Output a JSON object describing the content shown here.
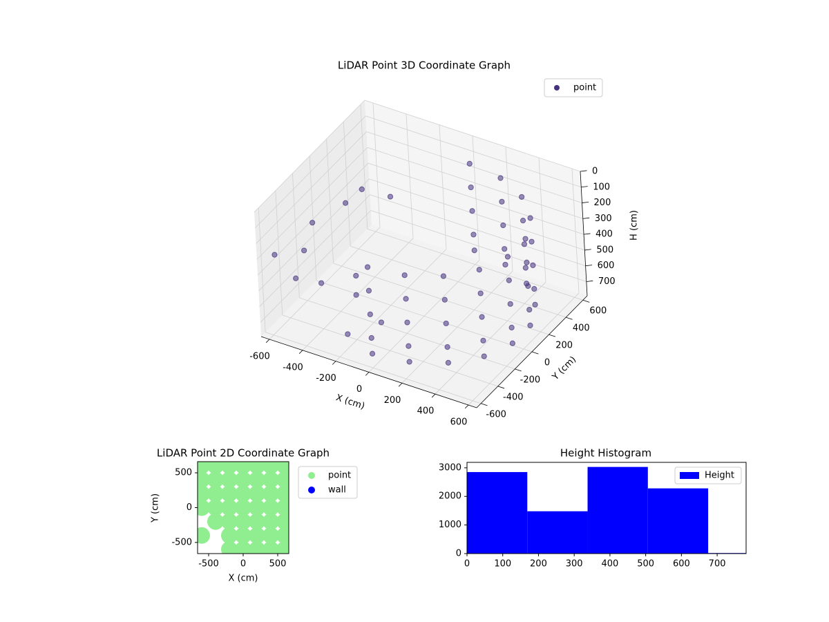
{
  "chart_data": [
    {
      "type": "scatter3d",
      "title": "LiDAR Point 3D Coordinate Graph",
      "xlabel": "X (cm)",
      "ylabel": "Y (cm)",
      "zlabel": "H (cm)",
      "xlim": [
        -650,
        650
      ],
      "ylim": [
        -650,
        650
      ],
      "zlim": [
        0,
        790
      ],
      "zinverted": true,
      "xticks": [
        -600,
        -400,
        -200,
        0,
        200,
        400,
        600
      ],
      "yticks": [
        -600,
        -400,
        -200,
        0,
        200,
        400,
        600
      ],
      "zticks": [
        0,
        100,
        200,
        300,
        400,
        500,
        600,
        700
      ],
      "grid": true,
      "legend": "upper right",
      "series": [
        {
          "name": "point",
          "color": "#46327e",
          "x": [
            0,
            205,
            386,
            520,
            591,
            591,
            520,
            386,
            205,
            0,
            0,
            205,
            386,
            520,
            591,
            591,
            520,
            386,
            205,
            0,
            0,
            205,
            386,
            520,
            591,
            591,
            520,
            386,
            205,
            0,
            0,
            205,
            386,
            520,
            591,
            591,
            520,
            386,
            205,
            0,
            0,
            205,
            386,
            520,
            591,
            591,
            520,
            386,
            205,
            0,
            -550,
            -600,
            -500,
            -400,
            -300,
            -200,
            -450,
            -350,
            -100,
            -500,
            -650,
            -250
          ],
          "y": [
            -600,
            -564,
            -460,
            -300,
            -104,
            104,
            300,
            460,
            564,
            600,
            -600,
            -564,
            -460,
            -300,
            -104,
            104,
            300,
            460,
            564,
            600,
            -600,
            -564,
            -460,
            -300,
            -104,
            104,
            300,
            460,
            564,
            600,
            -600,
            -564,
            -460,
            -300,
            -104,
            104,
            300,
            460,
            564,
            600,
            -600,
            -564,
            -460,
            -300,
            -104,
            104,
            300,
            460,
            564,
            600,
            -300,
            -100,
            100,
            -400,
            -200,
            -500,
            200,
            -100,
            -300,
            -500,
            -450,
            150
          ],
          "z": [
            150,
            150,
            150,
            150,
            150,
            150,
            150,
            150,
            150,
            150,
            300,
            300,
            300,
            300,
            300,
            300,
            300,
            300,
            300,
            300,
            450,
            450,
            450,
            450,
            450,
            450,
            450,
            450,
            450,
            450,
            600,
            600,
            600,
            600,
            600,
            600,
            600,
            600,
            600,
            600,
            700,
            700,
            700,
            700,
            700,
            700,
            700,
            700,
            700,
            700,
            400,
            350,
            300,
            500,
            650,
            700,
            250,
            600,
            700,
            450,
            380,
            200
          ]
        }
      ]
    },
    {
      "type": "scatter",
      "title": "LiDAR Point 2D Coordinate Graph",
      "xlabel": "X (cm)",
      "ylabel": "Y (cm)",
      "xlim": [
        -660,
        660
      ],
      "ylim": [
        -660,
        660
      ],
      "xticks": [
        -500,
        0,
        500
      ],
      "yticks": [
        -500,
        0,
        500
      ],
      "legend": "outside right",
      "series": [
        {
          "name": "point",
          "color": "#90ee90",
          "x": [
            -600,
            -400,
            -200,
            0,
            200,
            400,
            600,
            -600,
            -400,
            -200,
            0,
            200,
            400,
            600,
            -600,
            -400,
            -200,
            0,
            200,
            400,
            600,
            -600,
            -400,
            -200,
            0,
            200,
            400,
            600,
            -400,
            -200,
            0,
            200,
            400,
            600,
            -600,
            -200,
            0,
            200,
            400,
            600,
            -200,
            0,
            200,
            400,
            600
          ],
          "y": [
            600,
            600,
            600,
            600,
            600,
            600,
            600,
            400,
            400,
            400,
            400,
            400,
            400,
            400,
            200,
            200,
            200,
            200,
            200,
            200,
            200,
            0,
            0,
            0,
            0,
            0,
            0,
            0,
            -200,
            -200,
            -200,
            -200,
            -200,
            -200,
            -400,
            -400,
            -400,
            -400,
            -400,
            -400,
            -600,
            -600,
            -600,
            -600,
            -600
          ]
        },
        {
          "name": "wall",
          "color": "#0000ff",
          "x": [],
          "y": []
        }
      ]
    },
    {
      "type": "histogram",
      "title": "Height Histogram",
      "bins": [
        0,
        168.7,
        337.4,
        506.1,
        674.8,
        843.5
      ],
      "counts": [
        2850,
        1480,
        3030,
        2280,
        20
      ],
      "xlim": [
        0,
        781
      ],
      "ylim": [
        0,
        3190
      ],
      "xticks": [
        0,
        100,
        200,
        300,
        400,
        500,
        600,
        700
      ],
      "yticks": [
        0,
        1000,
        2000,
        3000
      ],
      "legend": "upper right",
      "series_name": "Height",
      "color": "#0000ff"
    }
  ]
}
